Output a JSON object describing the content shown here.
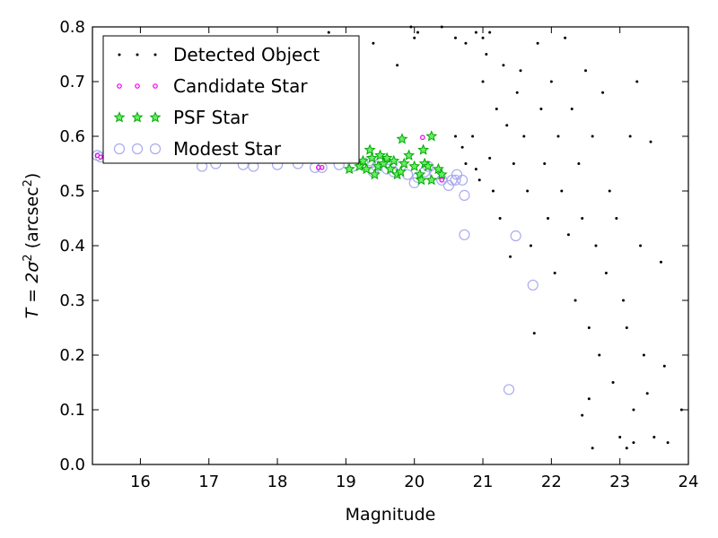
{
  "chart_data": {
    "type": "scatter",
    "xlabel": "Magnitude",
    "ylabel": {
      "main": "T = 2σ",
      "sup": "2",
      "unit_open": " (arcsec",
      "unit_sup": "2",
      "unit_close": ")"
    },
    "xlim": [
      15.3,
      24
    ],
    "ylim": [
      0,
      0.8
    ],
    "xticks": [
      16,
      17,
      18,
      19,
      20,
      21,
      22,
      23,
      24
    ],
    "yticks": [
      0.0,
      0.1,
      0.2,
      0.3,
      0.4,
      0.5,
      0.6,
      0.7,
      0.8
    ],
    "legend_position": "top-left",
    "series": [
      {
        "name": "Modest Star",
        "marker": "circle-open",
        "color": "#aaaaee",
        "points": [
          [
            15.37,
            0.565
          ],
          [
            15.42,
            0.562
          ],
          [
            15.75,
            0.575
          ],
          [
            15.95,
            0.578
          ],
          [
            16.2,
            0.57
          ],
          [
            16.9,
            0.545
          ],
          [
            17.1,
            0.55
          ],
          [
            17.5,
            0.548
          ],
          [
            17.65,
            0.545
          ],
          [
            18.0,
            0.548
          ],
          [
            18.3,
            0.55
          ],
          [
            18.55,
            0.543
          ],
          [
            18.65,
            0.543
          ],
          [
            18.9,
            0.548
          ],
          [
            19.1,
            0.545
          ],
          [
            19.25,
            0.55
          ],
          [
            19.35,
            0.555
          ],
          [
            19.4,
            0.535
          ],
          [
            19.45,
            0.545
          ],
          [
            19.5,
            0.552
          ],
          [
            19.6,
            0.54
          ],
          [
            19.7,
            0.535
          ],
          [
            19.8,
            0.545
          ],
          [
            19.9,
            0.53
          ],
          [
            20.0,
            0.515
          ],
          [
            20.05,
            0.525
          ],
          [
            20.15,
            0.535
          ],
          [
            20.2,
            0.545
          ],
          [
            20.3,
            0.53
          ],
          [
            20.4,
            0.52
          ],
          [
            20.5,
            0.51
          ],
          [
            20.55,
            0.52
          ],
          [
            20.6,
            0.52
          ],
          [
            20.62,
            0.53
          ],
          [
            20.7,
            0.52
          ],
          [
            20.73,
            0.492
          ],
          [
            20.73,
            0.42
          ],
          [
            21.38,
            0.137
          ],
          [
            21.48,
            0.418
          ],
          [
            21.73,
            0.328
          ]
        ]
      },
      {
        "name": "PSF Star",
        "marker": "star",
        "color": "#00aa00",
        "points": [
          [
            19.05,
            0.54
          ],
          [
            19.2,
            0.545
          ],
          [
            19.25,
            0.555
          ],
          [
            19.3,
            0.54
          ],
          [
            19.35,
            0.575
          ],
          [
            19.38,
            0.56
          ],
          [
            19.42,
            0.53
          ],
          [
            19.47,
            0.545
          ],
          [
            19.5,
            0.565
          ],
          [
            19.55,
            0.55
          ],
          [
            19.6,
            0.56
          ],
          [
            19.65,
            0.54
          ],
          [
            19.7,
            0.555
          ],
          [
            19.75,
            0.53
          ],
          [
            19.8,
            0.535
          ],
          [
            19.85,
            0.55
          ],
          [
            19.82,
            0.595
          ],
          [
            19.92,
            0.565
          ],
          [
            20.0,
            0.545
          ],
          [
            20.08,
            0.53
          ],
          [
            20.1,
            0.52
          ],
          [
            20.15,
            0.55
          ],
          [
            20.2,
            0.545
          ],
          [
            20.13,
            0.575
          ],
          [
            20.25,
            0.6
          ],
          [
            20.25,
            0.52
          ],
          [
            20.35,
            0.54
          ],
          [
            20.4,
            0.53
          ]
        ]
      },
      {
        "name": "Candidate Star",
        "marker": "circle-small",
        "color": "#ee00ee",
        "points": [
          [
            15.37,
            0.565
          ],
          [
            15.42,
            0.562
          ],
          [
            18.6,
            0.543
          ],
          [
            18.65,
            0.543
          ],
          [
            20.12,
            0.598
          ],
          [
            20.4,
            0.52
          ]
        ]
      },
      {
        "name": "Detected Object",
        "marker": "dot",
        "color": "#000000",
        "points": [
          [
            18.75,
            0.79
          ],
          [
            19.4,
            0.77
          ],
          [
            19.75,
            0.73
          ],
          [
            19.95,
            0.8
          ],
          [
            20.0,
            0.78
          ],
          [
            20.05,
            0.79
          ],
          [
            20.4,
            0.8
          ],
          [
            20.6,
            0.78
          ],
          [
            20.75,
            0.77
          ],
          [
            20.9,
            0.79
          ],
          [
            21.0,
            0.78
          ],
          [
            21.1,
            0.79
          ],
          [
            20.6,
            0.6
          ],
          [
            20.7,
            0.58
          ],
          [
            20.75,
            0.55
          ],
          [
            20.85,
            0.6
          ],
          [
            20.9,
            0.54
          ],
          [
            20.95,
            0.52
          ],
          [
            21.0,
            0.7
          ],
          [
            21.05,
            0.75
          ],
          [
            21.1,
            0.56
          ],
          [
            21.15,
            0.5
          ],
          [
            21.2,
            0.65
          ],
          [
            21.25,
            0.45
          ],
          [
            21.3,
            0.73
          ],
          [
            21.35,
            0.62
          ],
          [
            21.4,
            0.38
          ],
          [
            21.45,
            0.55
          ],
          [
            21.5,
            0.68
          ],
          [
            21.55,
            0.72
          ],
          [
            21.6,
            0.6
          ],
          [
            21.65,
            0.5
          ],
          [
            21.7,
            0.4
          ],
          [
            21.75,
            0.24
          ],
          [
            21.8,
            0.77
          ],
          [
            21.85,
            0.65
          ],
          [
            21.9,
            0.55
          ],
          [
            21.95,
            0.45
          ],
          [
            22.0,
            0.7
          ],
          [
            22.05,
            0.35
          ],
          [
            22.1,
            0.6
          ],
          [
            22.15,
            0.5
          ],
          [
            22.2,
            0.78
          ],
          [
            22.25,
            0.42
          ],
          [
            22.3,
            0.65
          ],
          [
            22.35,
            0.3
          ],
          [
            22.4,
            0.55
          ],
          [
            22.45,
            0.45
          ],
          [
            22.5,
            0.72
          ],
          [
            22.55,
            0.25
          ],
          [
            22.6,
            0.6
          ],
          [
            22.65,
            0.4
          ],
          [
            22.7,
            0.2
          ],
          [
            22.75,
            0.68
          ],
          [
            22.8,
            0.35
          ],
          [
            22.85,
            0.5
          ],
          [
            22.9,
            0.15
          ],
          [
            22.95,
            0.45
          ],
          [
            23.0,
            0.05
          ],
          [
            23.05,
            0.3
          ],
          [
            23.1,
            0.25
          ],
          [
            23.15,
            0.6
          ],
          [
            23.2,
            0.1
          ],
          [
            23.25,
            0.7
          ],
          [
            23.3,
            0.4
          ],
          [
            23.35,
            0.2
          ],
          [
            23.4,
            0.13
          ],
          [
            23.45,
            0.59
          ],
          [
            23.5,
            0.05
          ],
          [
            23.6,
            0.37
          ],
          [
            23.65,
            0.18
          ],
          [
            23.7,
            0.04
          ],
          [
            23.9,
            0.1
          ],
          [
            22.6,
            0.03
          ],
          [
            22.55,
            0.12
          ],
          [
            22.45,
            0.09
          ],
          [
            23.1,
            0.03
          ],
          [
            23.2,
            0.04
          ]
        ]
      }
    ],
    "legend_order": [
      "Detected Object",
      "Candidate Star",
      "PSF Star",
      "Modest Star"
    ]
  }
}
